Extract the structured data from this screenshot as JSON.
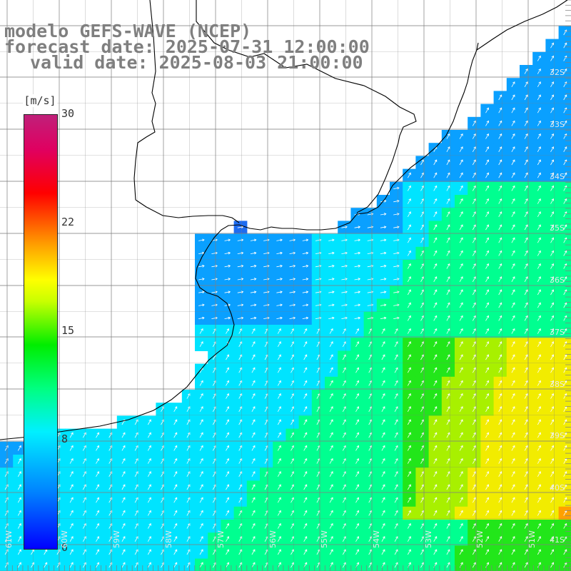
{
  "header": {
    "title": "modelo GEFS-WAVE (NCEP)",
    "forecast_date": "forecast date: 2025-07-31 12:00:00",
    "valid_date": "valid date: 2025-08-03 21:00:00"
  },
  "colorbar": {
    "unit": "[m/s]",
    "ticks": [
      "30",
      "22",
      "15",
      "8",
      "0"
    ],
    "tick_values": [
      30,
      22,
      15,
      8,
      0
    ],
    "colors": [
      "#0000ff",
      "#0082ff",
      "#00f0ff",
      "#00ff80",
      "#00ee00",
      "#c8ff00",
      "#ffff00",
      "#ffa000",
      "#ff5000",
      "#ff0000",
      "#c0207a"
    ]
  },
  "map": {
    "lat_labels": [
      "32S",
      "33S",
      "34S",
      "35S",
      "36S",
      "37S",
      "38S",
      "39S",
      "40S",
      "41S"
    ],
    "lon_labels": [
      "61W",
      "60W",
      "59W",
      "58W",
      "57W",
      "56W",
      "55W",
      "54W",
      "53W",
      "52W",
      "51W"
    ],
    "colors": {
      "ocean_low": "#1e6cf0",
      "ocean_mid": "#00e4ff",
      "ocean_green": "#22e61a",
      "ocean_yellow": "#f2ec00",
      "land": "#ffffff",
      "coastline": "#000000",
      "grid": "#7f7f7f",
      "arrows": "#ffffff"
    }
  }
}
